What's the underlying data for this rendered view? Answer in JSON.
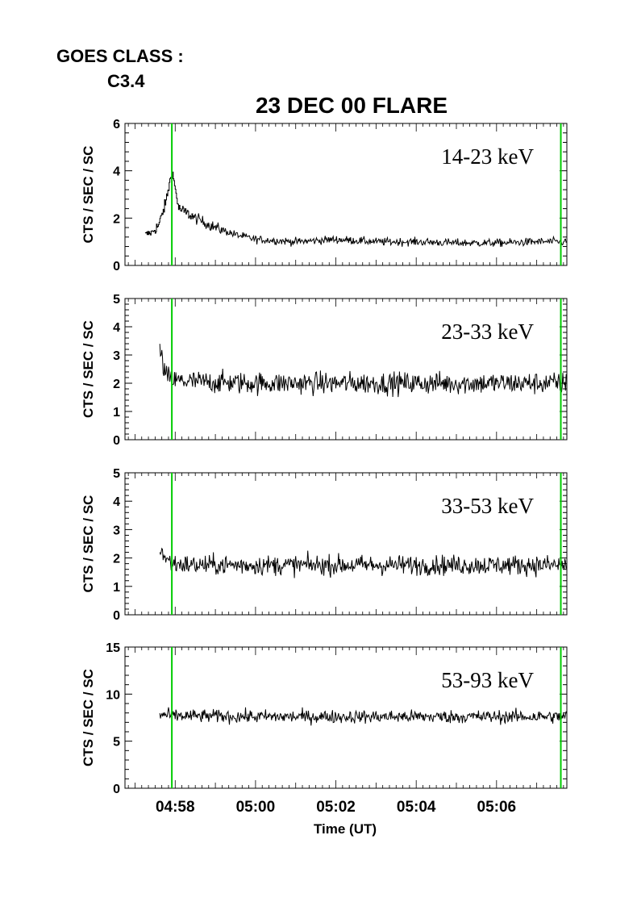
{
  "header": {
    "goes_label": "GOES CLASS :",
    "goes_class": "C3.4",
    "title": "23 DEC 00 FLARE"
  },
  "colors": {
    "trace": "#000000",
    "marker": "#00cc00"
  },
  "chart_data": [
    {
      "type": "line",
      "series": [
        {
          "name": "14-23 keV"
        }
      ],
      "ylabel": "CTS / SEC / SC",
      "ylim": [
        0,
        6
      ],
      "yticks": [
        "0",
        "2",
        "4",
        "6"
      ],
      "xlim": [
        "04:56:45",
        "05:07:45"
      ],
      "description_points": {
        "x": [
          "04:57:15",
          "04:57:25",
          "04:57:35",
          "04:57:45",
          "04:57:55",
          "04:58:05",
          "04:58:30",
          "04:59:00",
          "04:59:30",
          "05:00:00",
          "05:01:00",
          "05:02:00",
          "05:03:00",
          "05:04:00",
          "05:05:00",
          "05:06:00",
          "05:07:00",
          "05:07:45"
        ],
        "y": [
          1.3,
          1.4,
          1.7,
          2.6,
          4.0,
          2.4,
          2.0,
          1.6,
          1.3,
          1.1,
          1.0,
          1.1,
          1.0,
          1.0,
          0.95,
          0.95,
          1.0,
          1.0
        ]
      },
      "noise": 0.12,
      "start": "04:57:15",
      "step": "line",
      "markers": [
        "04:57:55",
        "05:07:36"
      ]
    },
    {
      "type": "line",
      "series": [
        {
          "name": "23-33 keV"
        }
      ],
      "ylabel": "CTS / SEC / SC",
      "ylim": [
        0,
        5
      ],
      "yticks": [
        "0",
        "1",
        "2",
        "3",
        "4",
        "5"
      ],
      "xlim": [
        "04:56:45",
        "05:07:45"
      ],
      "description_points": {
        "x": [
          "04:57:37",
          "04:57:45",
          "04:57:55",
          "04:58:30",
          "05:00:00",
          "05:02:00",
          "05:04:00",
          "05:06:00",
          "05:07:45"
        ],
        "y": [
          3.2,
          2.3,
          2.1,
          2.05,
          2.0,
          2.0,
          2.0,
          2.0,
          2.0
        ]
      },
      "noise": 0.28,
      "start": "04:57:37",
      "markers": [
        "04:57:55",
        "05:07:36"
      ]
    },
    {
      "type": "line",
      "series": [
        {
          "name": "33-53 keV"
        }
      ],
      "ylabel": "CTS / SEC / SC",
      "ylim": [
        0,
        5
      ],
      "yticks": [
        "0",
        "1",
        "2",
        "3",
        "4",
        "5"
      ],
      "xlim": [
        "04:56:45",
        "05:07:45"
      ],
      "description_points": {
        "x": [
          "04:57:37",
          "04:57:45",
          "04:57:55",
          "04:58:30",
          "05:00:00",
          "05:02:00",
          "05:04:00",
          "05:06:00",
          "05:07:45"
        ],
        "y": [
          2.4,
          2.0,
          1.8,
          1.75,
          1.75,
          1.75,
          1.75,
          1.75,
          1.75
        ]
      },
      "noise": 0.25,
      "start": "04:57:37",
      "markers": [
        "04:57:55",
        "05:07:36"
      ]
    },
    {
      "type": "line",
      "series": [
        {
          "name": "53-93 keV"
        }
      ],
      "ylabel": "CTS / SEC / SC",
      "ylim": [
        0,
        15
      ],
      "yticks": [
        "0",
        "5",
        "10",
        "15"
      ],
      "xlim": [
        "04:56:45",
        "05:07:45"
      ],
      "xticks": [
        "04:58",
        "05:00",
        "05:02",
        "05:04",
        "05:06"
      ],
      "xlabel": "Time (UT)",
      "description_points": {
        "x": [
          "04:57:37",
          "04:58:00",
          "05:00:00",
          "05:02:00",
          "05:04:00",
          "05:06:00",
          "05:07:45"
        ],
        "y": [
          7.8,
          7.7,
          7.6,
          7.6,
          7.6,
          7.6,
          7.6
        ]
      },
      "noise": 0.5,
      "start": "04:57:37",
      "markers": [
        "04:57:55",
        "05:07:36"
      ]
    }
  ]
}
